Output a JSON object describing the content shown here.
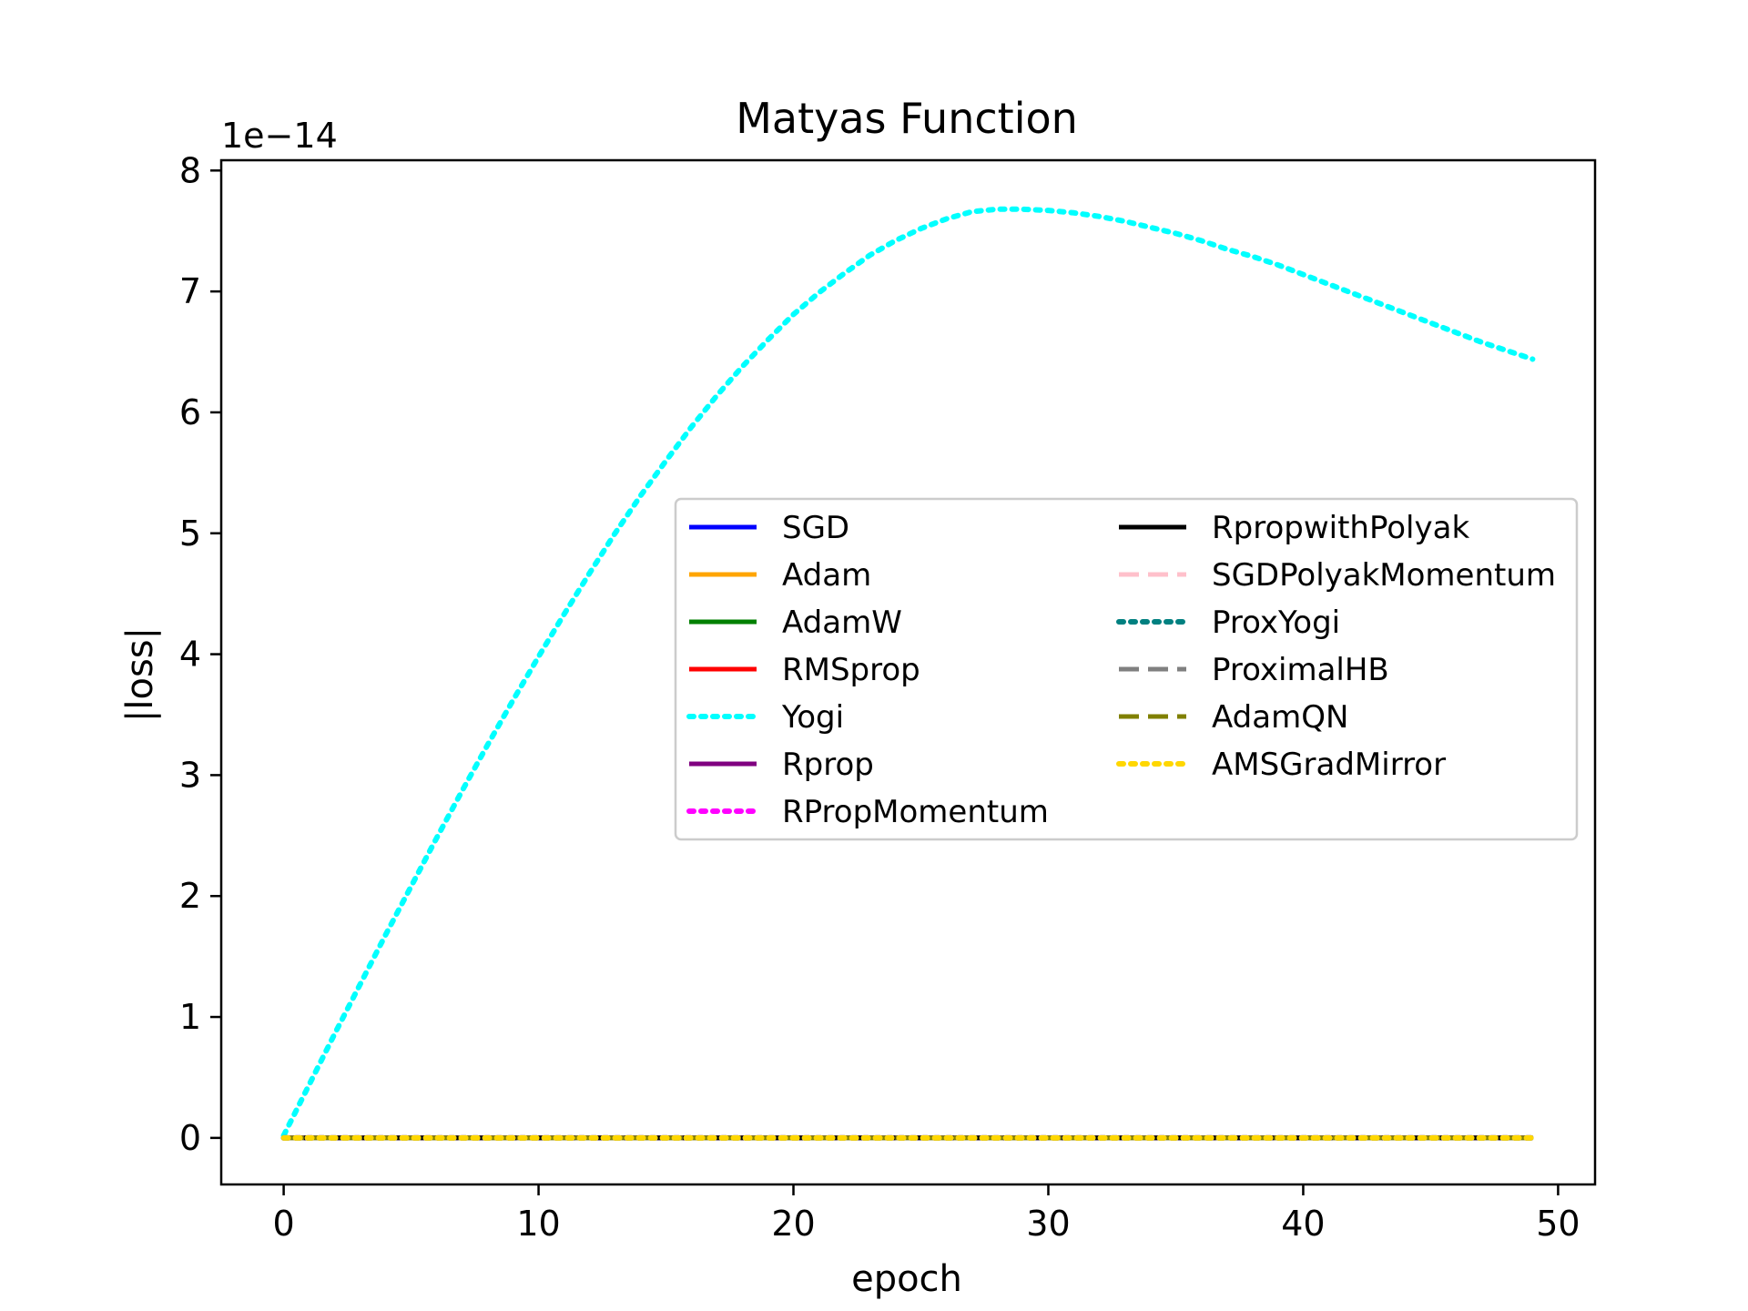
{
  "chart_data": {
    "type": "line",
    "title": "Matyas Function",
    "xlabel": "epoch",
    "ylabel": "|loss|",
    "y_offset_text": "1e−14",
    "y_scale_exponent": -14,
    "xlim": [
      -2.45,
      51.45
    ],
    "ylim": [
      -0.385,
      8.085
    ],
    "x_ticks": [
      0,
      10,
      20,
      30,
      40,
      50
    ],
    "x_tick_labels": [
      "0",
      "10",
      "20",
      "30",
      "40",
      "50"
    ],
    "y_ticks": [
      0,
      1,
      2,
      3,
      4,
      5,
      6,
      7,
      8
    ],
    "y_tick_labels": [
      "0",
      "1",
      "2",
      "3",
      "4",
      "5",
      "6",
      "7",
      "8"
    ],
    "grid": false,
    "legend_position": "center-right",
    "legend_columns": 2,
    "x": [
      0,
      1,
      2,
      3,
      4,
      5,
      6,
      7,
      8,
      9,
      10,
      11,
      12,
      13,
      14,
      15,
      16,
      17,
      18,
      19,
      20,
      21,
      22,
      23,
      24,
      25,
      26,
      27,
      28,
      29,
      30,
      31,
      32,
      33,
      34,
      35,
      36,
      37,
      38,
      39,
      40,
      41,
      42,
      43,
      44,
      45,
      46,
      47,
      48,
      49
    ],
    "series": [
      {
        "name": "SGD",
        "color": "#0000ff",
        "dash": "solid",
        "values": [
          0,
          0,
          0,
          0,
          0,
          0,
          0,
          0,
          0,
          0,
          0,
          0,
          0,
          0,
          0,
          0,
          0,
          0,
          0,
          0,
          0,
          0,
          0,
          0,
          0,
          0,
          0,
          0,
          0,
          0,
          0,
          0,
          0,
          0,
          0,
          0,
          0,
          0,
          0,
          0,
          0,
          0,
          0,
          0,
          0,
          0,
          0,
          0,
          0,
          0
        ]
      },
      {
        "name": "Adam",
        "color": "#ffa500",
        "dash": "solid",
        "values": [
          0,
          0,
          0,
          0,
          0,
          0,
          0,
          0,
          0,
          0,
          0,
          0,
          0,
          0,
          0,
          0,
          0,
          0,
          0,
          0,
          0,
          0,
          0,
          0,
          0,
          0,
          0,
          0,
          0,
          0,
          0,
          0,
          0,
          0,
          0,
          0,
          0,
          0,
          0,
          0,
          0,
          0,
          0,
          0,
          0,
          0,
          0,
          0,
          0,
          0
        ]
      },
      {
        "name": "AdamW",
        "color": "#008000",
        "dash": "solid",
        "values": [
          0,
          0,
          0,
          0,
          0,
          0,
          0,
          0,
          0,
          0,
          0,
          0,
          0,
          0,
          0,
          0,
          0,
          0,
          0,
          0,
          0,
          0,
          0,
          0,
          0,
          0,
          0,
          0,
          0,
          0,
          0,
          0,
          0,
          0,
          0,
          0,
          0,
          0,
          0,
          0,
          0,
          0,
          0,
          0,
          0,
          0,
          0,
          0,
          0,
          0
        ]
      },
      {
        "name": "RMSprop",
        "color": "#ff0000",
        "dash": "solid",
        "values": [
          0,
          0,
          0,
          0,
          0,
          0,
          0,
          0,
          0,
          0,
          0,
          0,
          0,
          0,
          0,
          0,
          0,
          0,
          0,
          0,
          0,
          0,
          0,
          0,
          0,
          0,
          0,
          0,
          0,
          0,
          0,
          0,
          0,
          0,
          0,
          0,
          0,
          0,
          0,
          0,
          0,
          0,
          0,
          0,
          0,
          0,
          0,
          0,
          0,
          0
        ]
      },
      {
        "name": "Yogi",
        "color": "#00ffff",
        "dash": "dotted",
        "values": [
          0.02,
          0.44,
          0.86,
          1.27,
          1.68,
          2.08,
          2.48,
          2.87,
          3.25,
          3.62,
          3.98,
          4.33,
          4.67,
          5.0,
          5.31,
          5.6,
          5.88,
          6.14,
          6.38,
          6.6,
          6.81,
          6.99,
          7.15,
          7.3,
          7.42,
          7.52,
          7.6,
          7.66,
          7.68,
          7.68,
          7.67,
          7.65,
          7.62,
          7.58,
          7.53,
          7.48,
          7.42,
          7.35,
          7.29,
          7.22,
          7.14,
          7.06,
          6.98,
          6.9,
          6.82,
          6.74,
          6.66,
          6.58,
          6.51,
          6.44
        ]
      },
      {
        "name": "Rprop",
        "color": "#800080",
        "dash": "solid",
        "values": [
          0,
          0,
          0,
          0,
          0,
          0,
          0,
          0,
          0,
          0,
          0,
          0,
          0,
          0,
          0,
          0,
          0,
          0,
          0,
          0,
          0,
          0,
          0,
          0,
          0,
          0,
          0,
          0,
          0,
          0,
          0,
          0,
          0,
          0,
          0,
          0,
          0,
          0,
          0,
          0,
          0,
          0,
          0,
          0,
          0,
          0,
          0,
          0,
          0,
          0
        ]
      },
      {
        "name": "RPropMomentum",
        "color": "#ff00ff",
        "dash": "dotted",
        "values": [
          0,
          0,
          0,
          0,
          0,
          0,
          0,
          0,
          0,
          0,
          0,
          0,
          0,
          0,
          0,
          0,
          0,
          0,
          0,
          0,
          0,
          0,
          0,
          0,
          0,
          0,
          0,
          0,
          0,
          0,
          0,
          0,
          0,
          0,
          0,
          0,
          0,
          0,
          0,
          0,
          0,
          0,
          0,
          0,
          0,
          0,
          0,
          0,
          0,
          0
        ]
      },
      {
        "name": "RpropwithPolyak",
        "color": "#000000",
        "dash": "solid",
        "values": [
          0,
          0,
          0,
          0,
          0,
          0,
          0,
          0,
          0,
          0,
          0,
          0,
          0,
          0,
          0,
          0,
          0,
          0,
          0,
          0,
          0,
          0,
          0,
          0,
          0,
          0,
          0,
          0,
          0,
          0,
          0,
          0,
          0,
          0,
          0,
          0,
          0,
          0,
          0,
          0,
          0,
          0,
          0,
          0,
          0,
          0,
          0,
          0,
          0,
          0
        ]
      },
      {
        "name": "SGDPolyakMomentum",
        "color": "#ffc0cb",
        "dash": "dashed",
        "values": [
          0,
          0,
          0,
          0,
          0,
          0,
          0,
          0,
          0,
          0,
          0,
          0,
          0,
          0,
          0,
          0,
          0,
          0,
          0,
          0,
          0,
          0,
          0,
          0,
          0,
          0,
          0,
          0,
          0,
          0,
          0,
          0,
          0,
          0,
          0,
          0,
          0,
          0,
          0,
          0,
          0,
          0,
          0,
          0,
          0,
          0,
          0,
          0,
          0,
          0
        ]
      },
      {
        "name": "ProxYogi",
        "color": "#008080",
        "dash": "dotted",
        "values": [
          0,
          0,
          0,
          0,
          0,
          0,
          0,
          0,
          0,
          0,
          0,
          0,
          0,
          0,
          0,
          0,
          0,
          0,
          0,
          0,
          0,
          0,
          0,
          0,
          0,
          0,
          0,
          0,
          0,
          0,
          0,
          0,
          0,
          0,
          0,
          0,
          0,
          0,
          0,
          0,
          0,
          0,
          0,
          0,
          0,
          0,
          0,
          0,
          0,
          0
        ]
      },
      {
        "name": "ProximalHB",
        "color": "#808080",
        "dash": "dashed",
        "values": [
          0,
          0,
          0,
          0,
          0,
          0,
          0,
          0,
          0,
          0,
          0,
          0,
          0,
          0,
          0,
          0,
          0,
          0,
          0,
          0,
          0,
          0,
          0,
          0,
          0,
          0,
          0,
          0,
          0,
          0,
          0,
          0,
          0,
          0,
          0,
          0,
          0,
          0,
          0,
          0,
          0,
          0,
          0,
          0,
          0,
          0,
          0,
          0,
          0,
          0
        ]
      },
      {
        "name": "AdamQN",
        "color": "#808000",
        "dash": "dashed",
        "values": [
          0,
          0,
          0,
          0,
          0,
          0,
          0,
          0,
          0,
          0,
          0,
          0,
          0,
          0,
          0,
          0,
          0,
          0,
          0,
          0,
          0,
          0,
          0,
          0,
          0,
          0,
          0,
          0,
          0,
          0,
          0,
          0,
          0,
          0,
          0,
          0,
          0,
          0,
          0,
          0,
          0,
          0,
          0,
          0,
          0,
          0,
          0,
          0,
          0,
          0
        ]
      },
      {
        "name": "AMSGradMirror",
        "color": "#ffd700",
        "dash": "dotted",
        "values": [
          0,
          0,
          0,
          0,
          0,
          0,
          0,
          0,
          0,
          0,
          0,
          0,
          0,
          0,
          0,
          0,
          0,
          0,
          0,
          0,
          0,
          0,
          0,
          0,
          0,
          0,
          0,
          0,
          0,
          0,
          0,
          0,
          0,
          0,
          0,
          0,
          0,
          0,
          0,
          0,
          0,
          0,
          0,
          0,
          0,
          0,
          0,
          0,
          0,
          0
        ]
      }
    ]
  }
}
